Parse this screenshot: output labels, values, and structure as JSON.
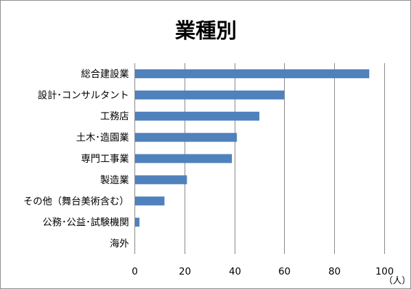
{
  "chart_data": {
    "type": "bar",
    "orientation": "horizontal",
    "title": "業種別",
    "categories": [
      "総合建設業",
      "設計･コンサルタント",
      "工務店",
      "土木･造園業",
      "専門工事業",
      "製造業",
      "その他（舞台美術含む）",
      "公務･公益･試験機関",
      "海外"
    ],
    "values": [
      94,
      60,
      50,
      41,
      39,
      21,
      12,
      2,
      0
    ],
    "xlim": [
      0,
      100
    ],
    "x_ticks": [
      "0",
      "20",
      "40",
      "60",
      "80",
      "100"
    ],
    "x_unit": "（人）",
    "grid": "vertical",
    "bar_color": "#4f81bd"
  }
}
